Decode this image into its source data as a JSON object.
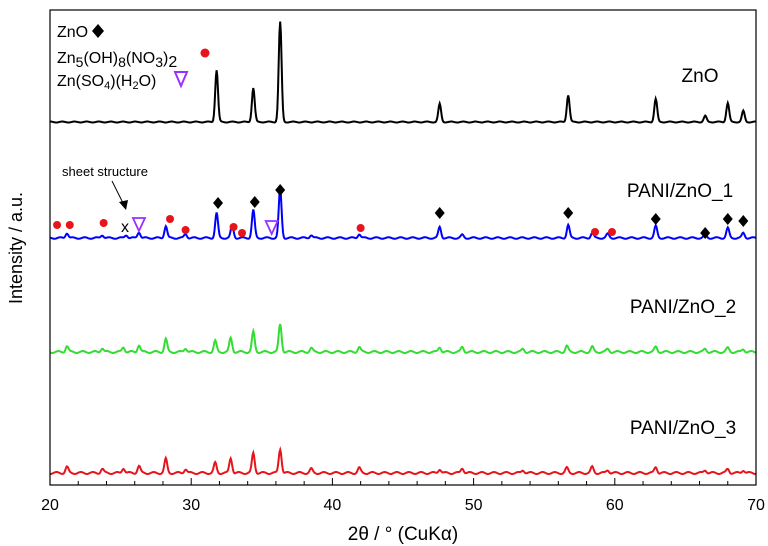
{
  "chart_data": {
    "type": "line",
    "xlabel": "2θ / ° (CuKα)",
    "ylabel": "Intensity / a.u.",
    "xlim": [
      20,
      70
    ],
    "xticks": [
      "20",
      "30",
      "40",
      "50",
      "60",
      "70"
    ],
    "legend": {
      "entries": [
        {
          "label": "ZnO",
          "marker": "diamond",
          "color": "#000000"
        },
        {
          "label": "Zn5(OH)8(NO3)2",
          "marker": "circle",
          "color": "#e8141c"
        },
        {
          "label": "Zn(SO4)(H2O)",
          "marker": "triangle-down",
          "color": "#9b30ff"
        }
      ]
    },
    "annotation": {
      "text": "sheet structure",
      "cross": "x"
    },
    "series": [
      {
        "name": "ZnO",
        "color": "#000000",
        "baseline": 0.02,
        "peaks": [
          [
            31.8,
            0.52
          ],
          [
            34.4,
            0.34
          ],
          [
            36.3,
            1.0
          ],
          [
            47.6,
            0.18
          ],
          [
            56.7,
            0.27
          ],
          [
            62.9,
            0.23
          ],
          [
            66.4,
            0.06
          ],
          [
            68.0,
            0.19
          ],
          [
            69.1,
            0.11
          ]
        ]
      },
      {
        "name": "PANI/ZnO_1",
        "color": "#0000ff",
        "baseline": 0.03,
        "peaks": [
          [
            21.2,
            0.05
          ],
          [
            23.7,
            0.03
          ],
          [
            25.4,
            0.03
          ],
          [
            26.3,
            0.06
          ],
          [
            28.2,
            0.12
          ],
          [
            29.6,
            0.04
          ],
          [
            31.8,
            0.25
          ],
          [
            32.9,
            0.12
          ],
          [
            34.4,
            0.28
          ],
          [
            36.3,
            0.48
          ],
          [
            38.5,
            0.03
          ],
          [
            41.9,
            0.04
          ],
          [
            47.6,
            0.11
          ],
          [
            49.2,
            0.03
          ],
          [
            56.7,
            0.13
          ],
          [
            58.4,
            0.05
          ],
          [
            59.5,
            0.04
          ],
          [
            62.9,
            0.12
          ],
          [
            66.4,
            0.03
          ],
          [
            68.0,
            0.1
          ],
          [
            69.1,
            0.05
          ]
        ]
      },
      {
        "name": "PANI/ZnO_2",
        "color": "#33dd33",
        "baseline": 0.04,
        "peaks": [
          [
            21.2,
            0.06
          ],
          [
            23.7,
            0.04
          ],
          [
            25.2,
            0.05
          ],
          [
            26.3,
            0.07
          ],
          [
            28.2,
            0.13
          ],
          [
            29.6,
            0.04
          ],
          [
            31.7,
            0.11
          ],
          [
            32.8,
            0.14
          ],
          [
            34.4,
            0.2
          ],
          [
            36.3,
            0.28
          ],
          [
            38.5,
            0.04
          ],
          [
            41.9,
            0.05
          ],
          [
            47.6,
            0.05
          ],
          [
            49.2,
            0.05
          ],
          [
            53.5,
            0.03
          ],
          [
            56.6,
            0.06
          ],
          [
            58.4,
            0.05
          ],
          [
            59.5,
            0.03
          ],
          [
            62.9,
            0.05
          ],
          [
            66.4,
            0.03
          ],
          [
            68.0,
            0.04
          ],
          [
            69.1,
            0.03
          ]
        ]
      },
      {
        "name": "PANI/ZnO_3",
        "color": "#e8141c",
        "baseline": 0.04,
        "peaks": [
          [
            21.2,
            0.06
          ],
          [
            23.7,
            0.04
          ],
          [
            25.2,
            0.05
          ],
          [
            26.3,
            0.07
          ],
          [
            28.2,
            0.14
          ],
          [
            29.6,
            0.04
          ],
          [
            31.7,
            0.1
          ],
          [
            32.8,
            0.15
          ],
          [
            34.4,
            0.2
          ],
          [
            36.3,
            0.24
          ],
          [
            38.5,
            0.04
          ],
          [
            41.9,
            0.05
          ],
          [
            47.6,
            0.04
          ],
          [
            49.2,
            0.05
          ],
          [
            53.5,
            0.03
          ],
          [
            56.6,
            0.05
          ],
          [
            58.4,
            0.06
          ],
          [
            59.5,
            0.03
          ],
          [
            62.9,
            0.06
          ],
          [
            66.4,
            0.03
          ],
          [
            68.0,
            0.04
          ],
          [
            69.1,
            0.03
          ]
        ]
      }
    ],
    "markers": [
      {
        "type": "diamond",
        "x": 31.9,
        "color": "#000000"
      },
      {
        "type": "diamond",
        "x": 34.5,
        "color": "#000000"
      },
      {
        "type": "diamond",
        "x": 36.3,
        "color": "#000000"
      },
      {
        "type": "diamond",
        "x": 47.6,
        "color": "#000000"
      },
      {
        "type": "diamond",
        "x": 56.7,
        "color": "#000000"
      },
      {
        "type": "diamond",
        "x": 62.9,
        "color": "#000000"
      },
      {
        "type": "diamond",
        "x": 66.4,
        "color": "#000000"
      },
      {
        "type": "diamond",
        "x": 68.0,
        "color": "#000000"
      },
      {
        "type": "diamond",
        "x": 69.1,
        "color": "#000000"
      },
      {
        "type": "circle",
        "x": 20.5,
        "color": "#e8141c"
      },
      {
        "type": "circle",
        "x": 21.4,
        "color": "#e8141c"
      },
      {
        "type": "circle",
        "x": 23.8,
        "color": "#e8141c"
      },
      {
        "type": "circle",
        "x": 28.5,
        "color": "#e8141c"
      },
      {
        "type": "circle",
        "x": 29.6,
        "color": "#e8141c"
      },
      {
        "type": "circle",
        "x": 33.0,
        "color": "#e8141c"
      },
      {
        "type": "circle",
        "x": 33.6,
        "color": "#e8141c"
      },
      {
        "type": "circle",
        "x": 42.0,
        "color": "#e8141c"
      },
      {
        "type": "circle",
        "x": 58.6,
        "color": "#e8141c"
      },
      {
        "type": "circle",
        "x": 59.8,
        "color": "#e8141c"
      },
      {
        "type": "triangle",
        "x": 26.3,
        "color": "#9b30ff"
      },
      {
        "type": "triangle",
        "x": 35.7,
        "color": "#9b30ff"
      }
    ]
  }
}
